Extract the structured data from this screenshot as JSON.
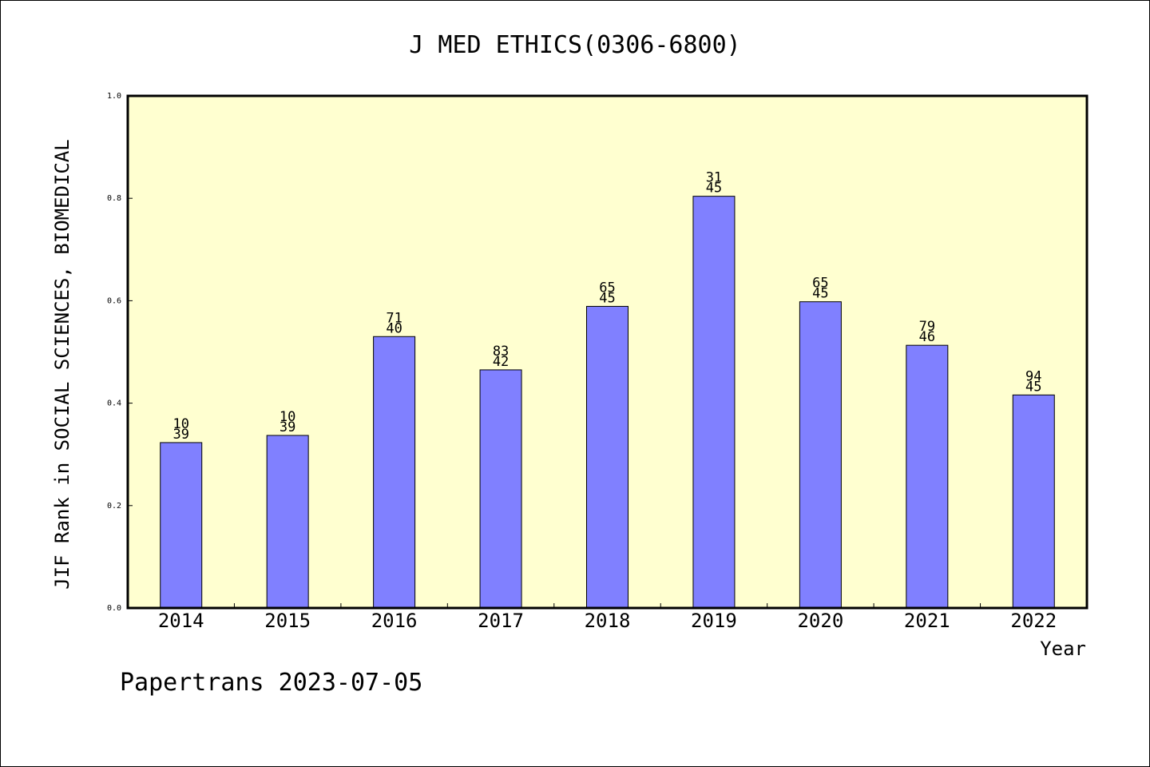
{
  "chart_data": {
    "type": "bar",
    "title": "J MED ETHICS(0306-6800)",
    "xlabel": "Year",
    "ylabel": "JIF Rank in SOCIAL SCIENCES, BIOMEDICAL",
    "ylim": [
      0,
      1.0
    ],
    "yticks": [
      "0.0",
      "0.2",
      "0.4",
      "0.6",
      "0.8",
      "1.0"
    ],
    "categories": [
      "2014",
      "2015",
      "2016",
      "2017",
      "2018",
      "2019",
      "2020",
      "2021",
      "2022"
    ],
    "values": [
      0.323,
      0.337,
      0.53,
      0.465,
      0.589,
      0.804,
      0.598,
      0.513,
      0.416
    ],
    "labels_top": [
      "10",
      "10",
      "71",
      "83",
      "65",
      "31",
      "65",
      "79",
      "94"
    ],
    "labels_bottom": [
      "39",
      "39",
      "40",
      "42",
      "45",
      "45",
      "45",
      "46",
      "45"
    ],
    "grid": false,
    "colors": {
      "plot_bg": "#ffffd0",
      "bar": "#8080ff"
    }
  },
  "footer": "Papertrans 2023-07-05"
}
